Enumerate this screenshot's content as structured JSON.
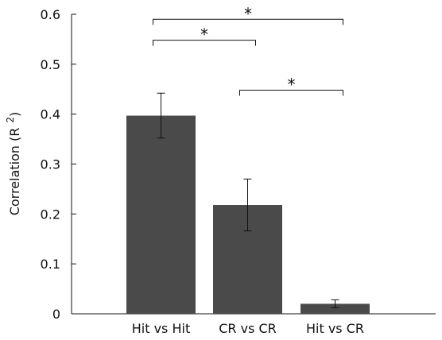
{
  "chart_data": {
    "type": "bar",
    "categories": [
      "Hit vs Hit",
      "CR vs CR",
      "Hit vs CR"
    ],
    "values": [
      0.397,
      0.218,
      0.02
    ],
    "errors": [
      0.045,
      0.052,
      0.008
    ],
    "ylabel": "Correlation (R",
    "ylabel_superscript": "2",
    "ylabel_close": ")",
    "ylim": [
      0,
      0.6
    ],
    "yticks": [
      "0",
      "0.1",
      "0.2",
      "0.3",
      "0.4",
      "0.5",
      "0.6"
    ],
    "bar_color": "#4a4a4a",
    "grid": false,
    "significance": [
      {
        "from": 0,
        "to": 2,
        "label": "*",
        "level": 0.59
      },
      {
        "from": 0,
        "to": 1,
        "label": "*",
        "level": 0.548
      },
      {
        "from": 1,
        "to": 2,
        "label": "*",
        "level": 0.448
      }
    ]
  }
}
